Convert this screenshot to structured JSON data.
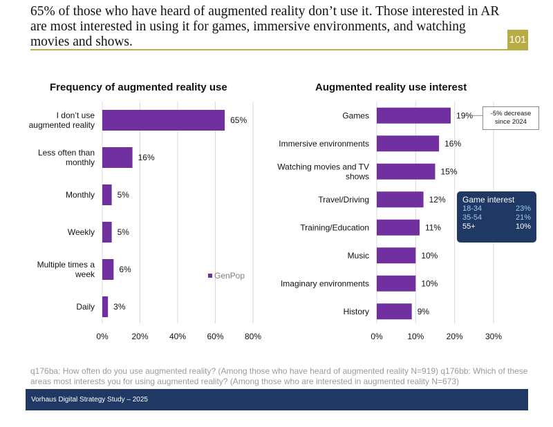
{
  "header": {
    "title": "65% of those who have heard of augmented reality don’t use it. Those interested in AR are most interested in using it for games, immersive environments, and watching movies and shows.",
    "page_number": "101"
  },
  "colors": {
    "bar": "#7030a0",
    "accent": "#b8ad45",
    "navy": "#1f3864"
  },
  "chart_data": [
    {
      "type": "bar",
      "orientation": "horizontal",
      "title": "Frequency of augmented reality use",
      "categories": [
        [
          "I don’t use",
          "augmented reality"
        ],
        [
          "Less often than",
          "monthly"
        ],
        [
          "Monthly"
        ],
        [
          "Weekly"
        ],
        [
          "Multiple times a",
          "week"
        ],
        [
          "Daily"
        ]
      ],
      "series": [
        {
          "name": "GenPop",
          "values": [
            65,
            16,
            5,
            5,
            6,
            3
          ]
        }
      ],
      "value_labels": [
        "65%",
        "16%",
        "5%",
        "5%",
        "6%",
        "3%"
      ],
      "xlim": [
        0,
        80
      ],
      "ticks": [
        "0%",
        "20%",
        "40%",
        "60%",
        "80%"
      ],
      "legend": "GenPop"
    },
    {
      "type": "bar",
      "orientation": "horizontal",
      "title": "Augmented reality use interest",
      "categories": [
        [
          "Games"
        ],
        [
          "Immersive environments"
        ],
        [
          "Watching movies and TV",
          "shows"
        ],
        [
          "Travel/Driving"
        ],
        [
          "Training/Education"
        ],
        [
          "Music"
        ],
        [
          "Imaginary environments"
        ],
        [
          "History"
        ]
      ],
      "series": [
        {
          "name": "GenPop",
          "values": [
            19,
            16,
            15,
            12,
            11,
            10,
            10,
            9
          ]
        }
      ],
      "value_labels": [
        "19%",
        "16%",
        "15%",
        "12%",
        "11%",
        "10%",
        "10%",
        "9%"
      ],
      "xlim": [
        0,
        30
      ],
      "ticks": [
        "0%",
        "10%",
        "20%",
        "30%"
      ]
    }
  ],
  "callout": {
    "line1": "-5% decrease",
    "line2": "since 2024"
  },
  "game_interest": {
    "title": "Game interest",
    "rows": [
      {
        "age": "18-34",
        "value": "23%"
      },
      {
        "age": "35-54",
        "value": "21%"
      },
      {
        "age": "55+",
        "value": "10%"
      }
    ]
  },
  "footnote": "q176ba: How often do you use augmented reality? (Among those who have heard of augmented reality N=919) q176bb: Which of these areas most interests you for using augmented reality? (Among those who are interested in augmented reality N=673)",
  "footer": "Vorhaus Digital Strategy Study – 2025"
}
